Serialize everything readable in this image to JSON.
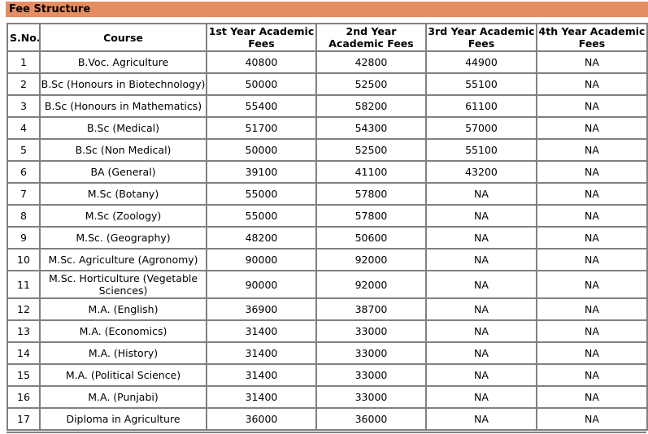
{
  "section": {
    "title": "Fee Structure"
  },
  "colors": {
    "banner_bg": "#E68E62",
    "table_border": "#808080",
    "text": "#000000",
    "page_bg": "#FFFFFF"
  },
  "table": {
    "headers": [
      "S.No.",
      "Course",
      "1st Year Academic Fees",
      "2nd Year Academic Fees",
      "3rd Year Academic Fees",
      "4th Year Academic Fees"
    ],
    "rows": [
      [
        "1",
        "B.Voc. Agriculture",
        "40800",
        "42800",
        "44900",
        "NA"
      ],
      [
        "2",
        "B.Sc (Honours in Biotechnology)",
        "50000",
        "52500",
        "55100",
        "NA"
      ],
      [
        "3",
        "B.Sc (Honours in Mathematics)",
        "55400",
        "58200",
        "61100",
        "NA"
      ],
      [
        "4",
        "B.Sc (Medical)",
        "51700",
        "54300",
        "57000",
        "NA"
      ],
      [
        "5",
        "B.Sc (Non Medical)",
        "50000",
        "52500",
        "55100",
        "NA"
      ],
      [
        "6",
        "BA (General)",
        "39100",
        "41100",
        "43200",
        "NA"
      ],
      [
        "7",
        "M.Sc (Botany)",
        "55000",
        "57800",
        "NA",
        "NA"
      ],
      [
        "8",
        "M.Sc (Zoology)",
        "55000",
        "57800",
        "NA",
        "NA"
      ],
      [
        "9",
        "M.Sc. (Geography)",
        "48200",
        "50600",
        "NA",
        "NA"
      ],
      [
        "10",
        "M.Sc. Agriculture (Agronomy)",
        "90000",
        "92000",
        "NA",
        "NA"
      ],
      [
        "11",
        "M.Sc. Horticulture (Vegetable Sciences)",
        "90000",
        "92000",
        "NA",
        "NA"
      ],
      [
        "12",
        "M.A. (English)",
        "36900",
        "38700",
        "NA",
        "NA"
      ],
      [
        "13",
        "M.A. (Economics)",
        "31400",
        "33000",
        "NA",
        "NA"
      ],
      [
        "14",
        "M.A. (History)",
        "31400",
        "33000",
        "NA",
        "NA"
      ],
      [
        "15",
        "M.A. (Political Science)",
        "31400",
        "33000",
        "NA",
        "NA"
      ],
      [
        "16",
        "M.A. (Punjabi)",
        "31400",
        "33000",
        "NA",
        "NA"
      ],
      [
        "17",
        "Diploma in Agriculture",
        "36000",
        "36000",
        "NA",
        "NA"
      ]
    ]
  }
}
